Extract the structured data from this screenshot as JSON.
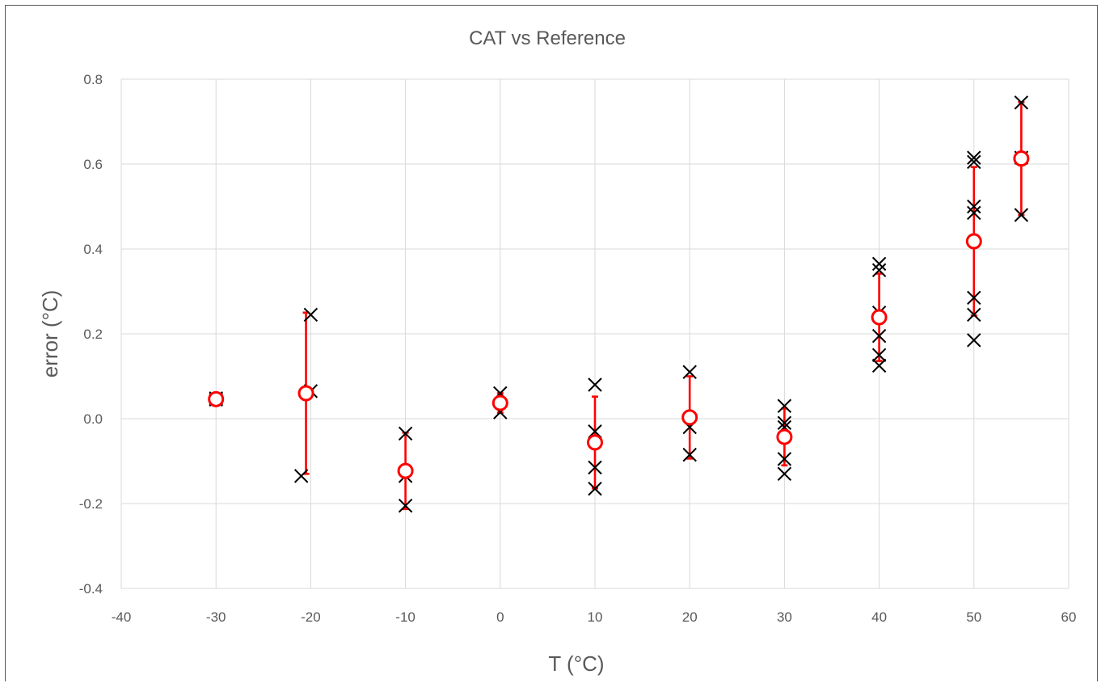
{
  "chart_data": {
    "type": "scatter",
    "title": "CAT vs Reference",
    "xlabel": "T (°C)",
    "ylabel": "error (°C)",
    "xlim": [
      -40,
      60
    ],
    "ylim": [
      -0.4,
      0.8
    ],
    "x_ticks": [
      "-40",
      "-30",
      "-20",
      "-10",
      "0",
      "10",
      "20",
      "30",
      "40",
      "50",
      "60"
    ],
    "y_ticks": [
      "-0.4",
      "-0.2",
      "0.0",
      "0.2",
      "0.4",
      "0.6",
      "0.8"
    ],
    "grid": true,
    "colors": {
      "raw": "#000000",
      "mean": "#ff0000",
      "grid": "#d9d9d9",
      "text": "#595959"
    },
    "series": [
      {
        "marker": "x",
        "points": [
          [
            -30,
            0.048
          ],
          [
            -30,
            0.045
          ],
          [
            -21,
            -0.135
          ],
          [
            -20,
            0.245
          ],
          [
            -20,
            0.065
          ],
          [
            -10,
            -0.035
          ],
          [
            -10,
            -0.135
          ],
          [
            -10,
            -0.205
          ],
          [
            0,
            0.06
          ],
          [
            0,
            0.015
          ],
          [
            10,
            0.08
          ],
          [
            10,
            -0.03
          ],
          [
            10,
            -0.115
          ],
          [
            10,
            -0.165
          ],
          [
            20,
            0.11
          ],
          [
            20,
            -0.02
          ],
          [
            20,
            -0.085
          ],
          [
            30,
            0.03
          ],
          [
            30,
            -0.01
          ],
          [
            30,
            -0.02
          ],
          [
            30,
            -0.095
          ],
          [
            30,
            -0.13
          ],
          [
            40,
            0.365
          ],
          [
            40,
            0.35
          ],
          [
            40,
            0.25
          ],
          [
            40,
            0.195
          ],
          [
            40,
            0.15
          ],
          [
            40,
            0.125
          ],
          [
            50,
            0.615
          ],
          [
            50,
            0.605
          ],
          [
            50,
            0.5
          ],
          [
            50,
            0.485
          ],
          [
            50,
            0.285
          ],
          [
            50,
            0.245
          ],
          [
            50,
            0.185
          ],
          [
            55,
            0.745
          ],
          [
            55,
            0.615
          ],
          [
            55,
            0.48
          ]
        ]
      },
      {
        "marker": "circle",
        "points": [
          {
            "x": -30,
            "y": 0.046,
            "err_low": 0.0,
            "err_high": 0.0
          },
          {
            "x": -20.5,
            "y": 0.06,
            "err_low": 0.19,
            "err_high": 0.19
          },
          {
            "x": -10,
            "y": -0.123,
            "err_low": 0.09,
            "err_high": 0.09
          },
          {
            "x": 0,
            "y": 0.037,
            "err_low": 0.023,
            "err_high": 0.023
          },
          {
            "x": 10,
            "y": -0.056,
            "err_low": 0.108,
            "err_high": 0.108
          },
          {
            "x": 20,
            "y": 0.003,
            "err_low": 0.097,
            "err_high": 0.097
          },
          {
            "x": 30,
            "y": -0.043,
            "err_low": 0.067,
            "err_high": 0.067
          },
          {
            "x": 40,
            "y": 0.239,
            "err_low": 0.103,
            "err_high": 0.103
          },
          {
            "x": 50,
            "y": 0.418,
            "err_low": 0.175,
            "err_high": 0.175
          },
          {
            "x": 55,
            "y": 0.613,
            "err_low": 0.133,
            "err_high": 0.133
          }
        ]
      }
    ]
  }
}
